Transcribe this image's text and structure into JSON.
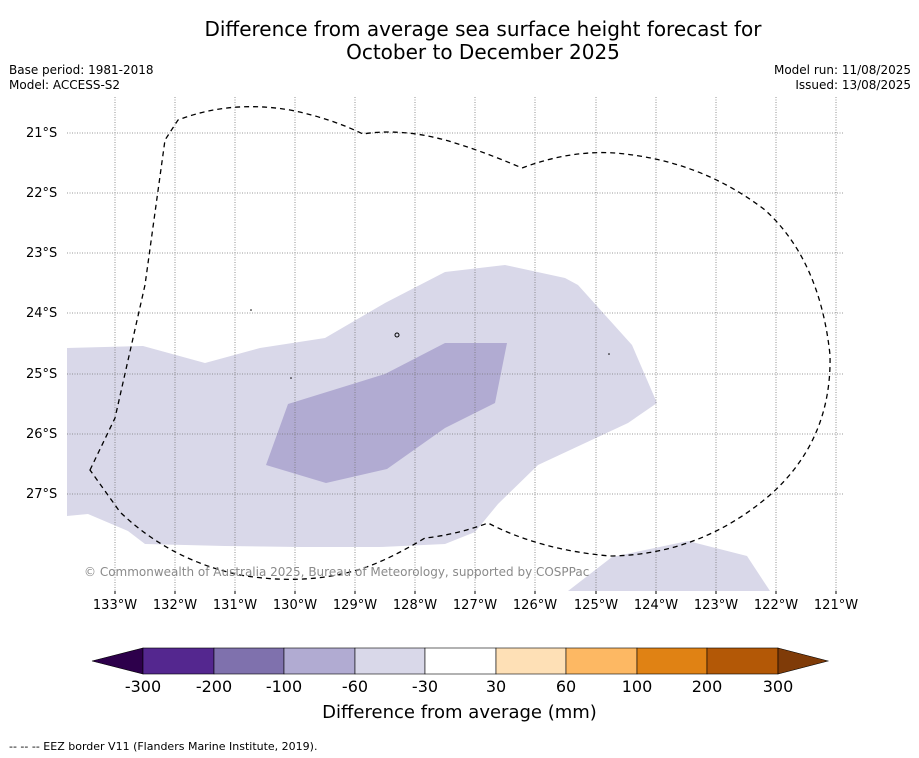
{
  "title": {
    "line1": "Difference from average sea surface height forecast for",
    "line2": "October to December 2025"
  },
  "meta": {
    "base_period": "Base period: 1981-2018",
    "model": "Model: ACCESS-S2",
    "model_run": "Model run: 11/08/2025",
    "issued": "Issued: 13/08/2025"
  },
  "map": {
    "latitudes": [
      "21°S",
      "22°S",
      "23°S",
      "24°S",
      "25°S",
      "26°S",
      "27°S"
    ],
    "longitudes": [
      "133°W",
      "132°W",
      "131°W",
      "130°W",
      "129°W",
      "128°W",
      "127°W",
      "126°W",
      "125°W",
      "124°W",
      "123°W",
      "122°W",
      "121°W"
    ],
    "copyright": "© Commonwealth of Australia 2025, Bureau of Meteorology, supported by COSPPac",
    "land_fill": "#ffffff",
    "outer_anomaly_color": "#d9d8e9",
    "inner_anomaly_color": "#b1abd2",
    "eez_border_style": "dashed black"
  },
  "colorbar": {
    "ticks": [
      "-300",
      "-200",
      "-100",
      "-60",
      "-30",
      "30",
      "60",
      "100",
      "200",
      "300"
    ],
    "colors": [
      "#54278f",
      "#7f71ad",
      "#b1abd2",
      "#d9d8e9",
      "#ffffff",
      "#fee0b6",
      "#fdb863",
      "#e08214",
      "#b35806"
    ],
    "low_extend_color": "#2d004b",
    "high_extend_color": "#7f3b08",
    "title": "Difference from average (mm)"
  },
  "footnote": "--  --  -- EEZ border V11 (Flanders Marine Institute, 2019)."
}
